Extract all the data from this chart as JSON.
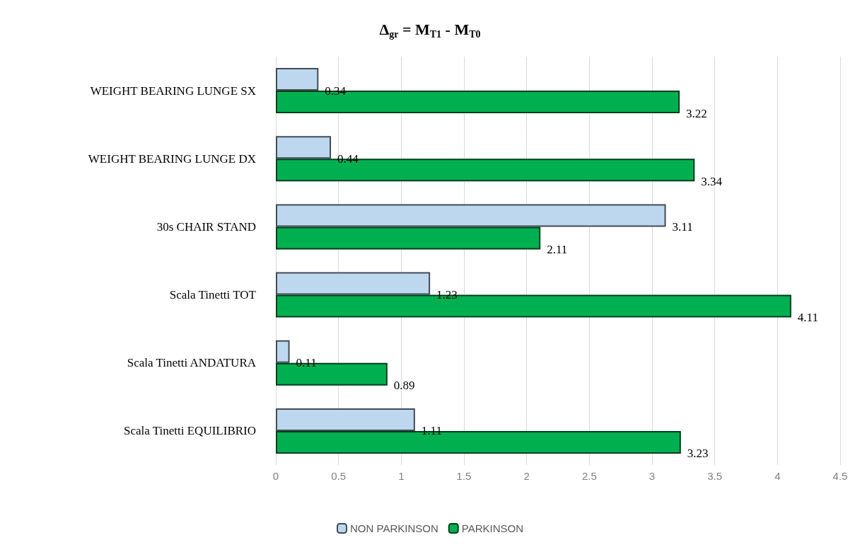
{
  "chart_data": {
    "type": "bar",
    "orientation": "horizontal",
    "title": "Δ$_{gr}$ = M$_{T1}$ - M$_{T0}$",
    "categories": [
      "WEIGHT BEARING LUNGE SX",
      "WEIGHT BEARING LUNGE DX",
      "30s CHAIR STAND",
      "Scala Tinetti TOT",
      "Scala Tinetti ANDATURA",
      "Scala Tinetti EQUILIBRIO"
    ],
    "series": [
      {
        "name": "NON PARKINSON",
        "color": "#bdd7ee",
        "values": [
          0.34,
          0.44,
          3.11,
          1.23,
          0.11,
          1.11
        ]
      },
      {
        "name": "PARKINSON",
        "color": "#00b050",
        "values": [
          3.22,
          3.34,
          2.11,
          4.11,
          0.89,
          3.23
        ]
      }
    ],
    "xlim": [
      0,
      4.5
    ],
    "xticks": [
      0,
      0.5,
      1,
      1.5,
      2,
      2.5,
      3,
      3.5,
      4,
      4.5
    ],
    "grid": "x",
    "legend": "bottom",
    "data_labels": true
  }
}
